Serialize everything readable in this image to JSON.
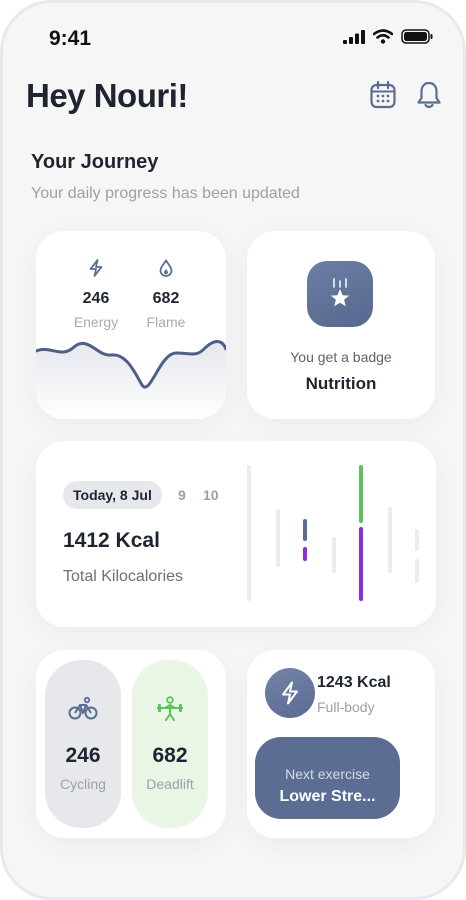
{
  "status_bar": {
    "time": "9:41"
  },
  "header": {
    "greeting": "Hey Nouri!"
  },
  "journey": {
    "title": "Your Journey",
    "subtitle": "Your daily progress has been updated"
  },
  "stats_card": {
    "energy": {
      "value": "246",
      "label": "Energy",
      "icon": "bolt-icon"
    },
    "flame": {
      "value": "682",
      "label": "Flame",
      "icon": "flame-icon"
    }
  },
  "badge_card": {
    "caption": "You get a badge",
    "title": "Nutrition",
    "icon": "star-badge-icon"
  },
  "kcal_card": {
    "date_selected": "Today, 8 Jul",
    "dates": [
      "9",
      "10"
    ],
    "value": "1412 Kcal",
    "label": "Total Kilocalories"
  },
  "activities": [
    {
      "value": "246",
      "label": "Cycling",
      "icon": "bicycle-icon"
    },
    {
      "value": "682",
      "label": "Deadlift",
      "icon": "weightlifting-icon"
    }
  ],
  "next_card": {
    "kcal": "1243 Kcal",
    "sub": "Full-body",
    "button_caption": "Next exercise",
    "button_title": "Lower Stre..."
  },
  "colors": {
    "accent": "#5b6d93",
    "green": "#5cc25a",
    "purple": "#8a2be2",
    "bg": "#f6f6f7"
  }
}
